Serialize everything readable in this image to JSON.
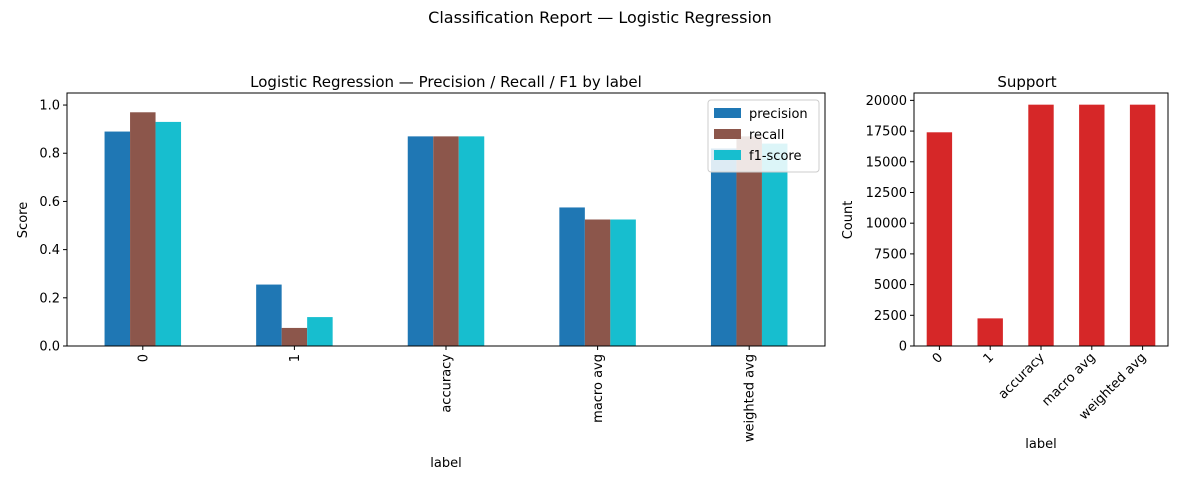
{
  "suptitle": "Classification Report — Logistic Regression",
  "chart_data": [
    {
      "type": "bar",
      "title": "Logistic Regression — Precision / Recall / F1 by label",
      "xlabel": "label",
      "ylabel": "Score",
      "categories": [
        "0",
        "1",
        "accuracy",
        "macro avg",
        "weighted avg"
      ],
      "series": [
        {
          "name": "precision",
          "color": "#1f77b4",
          "values": [
            0.89,
            0.255,
            0.87,
            0.575,
            0.82
          ]
        },
        {
          "name": "recall",
          "color": "#8c564b",
          "values": [
            0.97,
            0.075,
            0.87,
            0.525,
            0.87
          ]
        },
        {
          "name": "f1-score",
          "color": "#17becf",
          "values": [
            0.93,
            0.12,
            0.87,
            0.525,
            0.84
          ]
        }
      ],
      "ylim": [
        0,
        1.05
      ],
      "yticks": [
        "0.0",
        "0.2",
        "0.4",
        "0.6",
        "0.8",
        "1.0"
      ],
      "legend": "top-right",
      "grid": false
    },
    {
      "type": "bar",
      "title": "Support",
      "xlabel": "label",
      "ylabel": "Count",
      "categories": [
        "0",
        "1",
        "accuracy",
        "macro avg",
        "weighted avg"
      ],
      "series": [
        {
          "color": "#d62728",
          "values": [
            17400,
            2250,
            19650,
            19650,
            19650
          ]
        }
      ],
      "ylim": [
        0,
        20600
      ],
      "yticks": [
        "0",
        "2500",
        "5000",
        "7500",
        "10000",
        "12500",
        "15000",
        "17500",
        "20000"
      ],
      "legend": "none",
      "grid": false
    }
  ]
}
